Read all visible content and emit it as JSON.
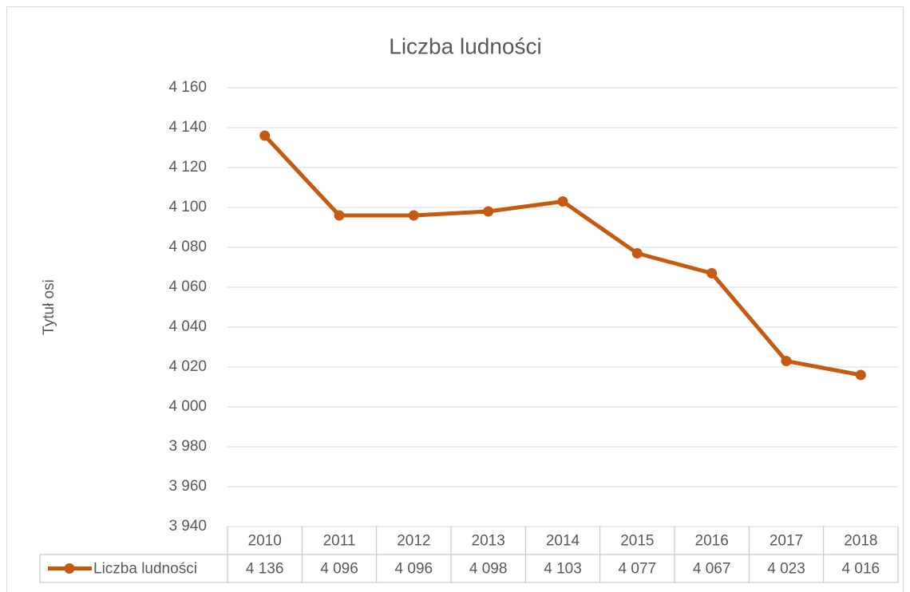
{
  "chart_data": {
    "type": "line",
    "title": "Liczba ludności",
    "y_axis_label": "Tytuł osi",
    "categories": [
      "2010",
      "2011",
      "2012",
      "2013",
      "2014",
      "2015",
      "2016",
      "2017",
      "2018"
    ],
    "series": [
      {
        "name": "Liczba ludności",
        "color": "#c55a11",
        "values": [
          4136,
          4096,
          4096,
          4098,
          4103,
          4077,
          4067,
          4023,
          4016
        ],
        "value_labels": [
          "4 136",
          "4 096",
          "4 096",
          "4 098",
          "4 103",
          "4 077",
          "4 067",
          "4 023",
          "4 016"
        ]
      }
    ],
    "ylim": [
      3940,
      4160
    ],
    "yticks": [
      {
        "value": 3940,
        "label": "3 940"
      },
      {
        "value": 3960,
        "label": "3 960"
      },
      {
        "value": 3980,
        "label": "3 980"
      },
      {
        "value": 4000,
        "label": "4 000"
      },
      {
        "value": 4020,
        "label": "4 020"
      },
      {
        "value": 4040,
        "label": "4 040"
      },
      {
        "value": 4060,
        "label": "4 060"
      },
      {
        "value": 4080,
        "label": "4 080"
      },
      {
        "value": 4100,
        "label": "4 100"
      },
      {
        "value": 4120,
        "label": "4 120"
      },
      {
        "value": 4140,
        "label": "4 140"
      },
      {
        "value": 4160,
        "label": "4 160"
      }
    ],
    "grid": true,
    "data_table": true
  }
}
